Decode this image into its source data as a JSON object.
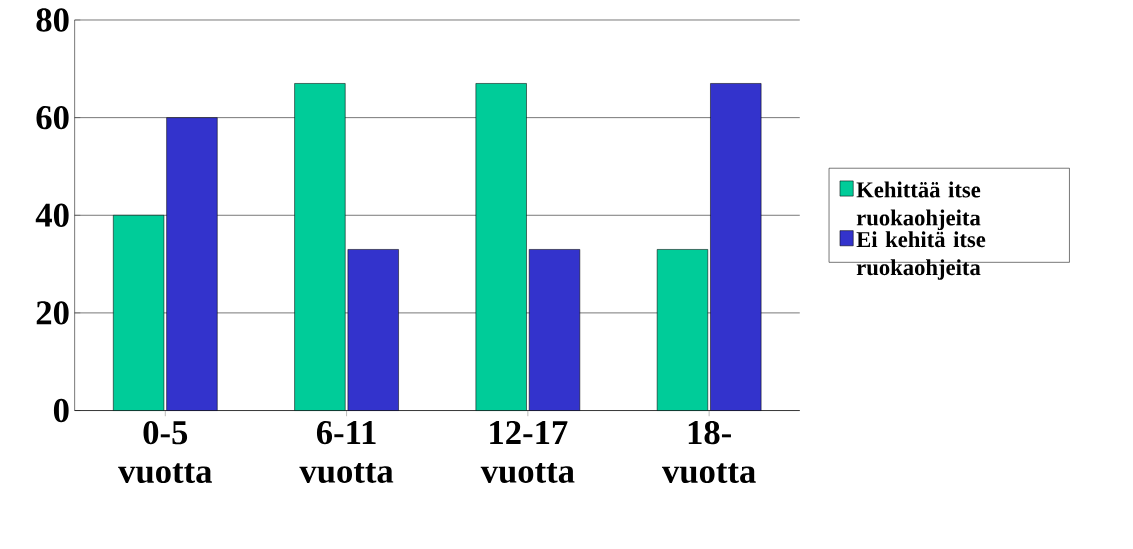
{
  "chart_data": {
    "type": "bar",
    "categories": [
      "0-5 vuotta",
      "6-11 vuotta",
      "12-17 vuotta",
      "18- vuotta"
    ],
    "series": [
      {
        "name": "Kehittää itse ruokaohjeita",
        "color": "#00cc99",
        "values": [
          40,
          67,
          67,
          33
        ]
      },
      {
        "name": "Ei kehitä itse ruokaohjeita",
        "color": "#3333cc",
        "values": [
          60,
          33,
          33,
          67
        ]
      }
    ],
    "ylim": [
      0,
      80
    ],
    "yticks": [
      0,
      20,
      40,
      60,
      80
    ],
    "grid": "y",
    "legend": "right"
  }
}
